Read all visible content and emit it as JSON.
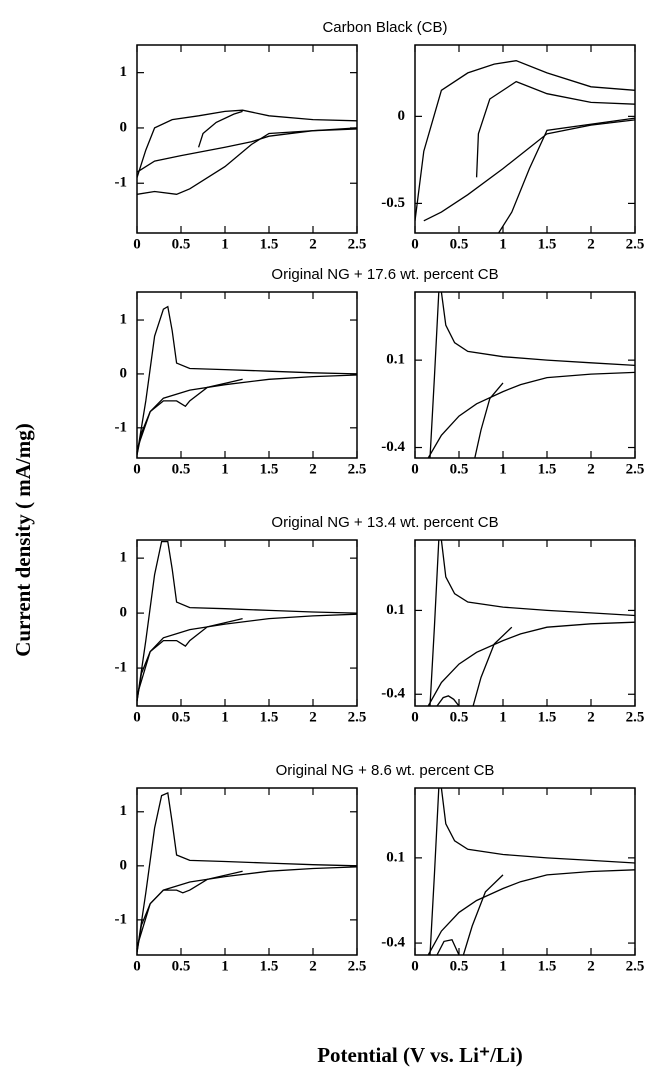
{
  "ylabel": "Current density ( mA/mg)",
  "xlabel": "Potential (V vs. Li⁺/Li)",
  "chart_data": [
    {
      "type": "line",
      "title": "Carbon Black (CB)",
      "xlim": [
        0,
        2.5
      ],
      "ylim": [
        -1.9,
        1.5
      ],
      "xticks": [
        0,
        0.5,
        1,
        1.5,
        2,
        2.5
      ],
      "yticks": [
        1,
        0,
        -1
      ],
      "series": [
        {
          "color": "#000000",
          "x": [
            0,
            0.1,
            0.2,
            0.4,
            0.7,
            1.0,
            1.2,
            1.5,
            2.0,
            2.5
          ],
          "values": [
            -0.9,
            -0.4,
            0.0,
            0.15,
            0.22,
            0.3,
            0.32,
            0.22,
            0.15,
            0.13
          ]
        },
        {
          "color": "#000000",
          "x": [
            2.5,
            2.0,
            1.5,
            1.3,
            1.0,
            0.5,
            0.2,
            0
          ],
          "values": [
            -0.02,
            -0.05,
            -0.15,
            -0.25,
            -0.35,
            -0.5,
            -0.6,
            -0.8
          ]
        },
        {
          "color": "#000000",
          "x": [
            2.5,
            1.5,
            1.3,
            1.0,
            0.6,
            0.45,
            0.2,
            0
          ],
          "values": [
            0,
            -0.1,
            -0.3,
            -0.7,
            -1.1,
            -1.2,
            -1.15,
            -1.2
          ]
        },
        {
          "color": "#000000",
          "x": [
            0.7,
            0.75,
            0.9,
            1.1,
            1.2
          ],
          "values": [
            -0.35,
            -0.1,
            0.1,
            0.25,
            0.3
          ]
        }
      ]
    },
    {
      "type": "line",
      "xlim": [
        0,
        2.5
      ],
      "ylim": [
        -0.67,
        0.41
      ],
      "xticks": [
        0,
        0.5,
        1,
        1.5,
        2,
        2.5
      ],
      "yticks": [
        0,
        -0.5
      ],
      "series": [
        {
          "color": "#000000",
          "x": [
            0,
            0.1,
            0.3,
            0.6,
            0.9,
            1.15,
            1.5,
            2,
            2.5
          ],
          "values": [
            -0.6,
            -0.2,
            0.15,
            0.25,
            0.3,
            0.32,
            0.25,
            0.17,
            0.15
          ]
        },
        {
          "color": "#000000",
          "x": [
            0.7,
            0.72,
            0.85,
            1.15,
            1.5,
            2,
            2.5
          ],
          "values": [
            -0.35,
            -0.1,
            0.1,
            0.2,
            0.13,
            0.08,
            0.07
          ]
        },
        {
          "color": "#000000",
          "x": [
            2.5,
            2,
            1.5,
            1.3,
            1,
            0.6,
            0.3,
            0.1
          ],
          "values": [
            -0.02,
            -0.05,
            -0.1,
            -0.18,
            -0.3,
            -0.45,
            -0.55,
            -0.6
          ]
        },
        {
          "color": "#000000",
          "x": [
            2.5,
            1.5,
            1.3,
            1.1,
            0.95
          ],
          "values": [
            -0.01,
            -0.08,
            -0.3,
            -0.55,
            -0.67
          ]
        }
      ]
    },
    {
      "type": "line",
      "title": "Original NG + 17.6 wt. percent CB",
      "xlim": [
        0,
        2.5
      ],
      "ylim": [
        -1.56,
        1.52
      ],
      "xticks": [
        0,
        0.5,
        1,
        1.5,
        2,
        2.5
      ],
      "yticks": [
        1,
        0,
        -1
      ],
      "series": [
        {
          "color": "#000000",
          "x": [
            0,
            0.1,
            0.2,
            0.3,
            0.35,
            0.4,
            0.45,
            0.6,
            1,
            1.5,
            2,
            2.5
          ],
          "values": [
            -1.5,
            -0.5,
            0.7,
            1.2,
            1.25,
            0.8,
            0.2,
            0.1,
            0.08,
            0.05,
            0.02,
            0.0
          ]
        },
        {
          "color": "#000000",
          "x": [
            2.5,
            2,
            1.5,
            1,
            0.6,
            0.3,
            0.15,
            0.05,
            0
          ],
          "values": [
            -0.02,
            -0.05,
            -0.1,
            -0.2,
            -0.3,
            -0.45,
            -0.7,
            -1.1,
            -1.5
          ]
        },
        {
          "color": "#000000",
          "x": [
            1.2,
            0.8,
            0.6,
            0.55,
            0.45,
            0.3,
            0.15,
            0
          ],
          "values": [
            -0.1,
            -0.25,
            -0.5,
            -0.6,
            -0.5,
            -0.5,
            -0.7,
            -1.4
          ]
        }
      ]
    },
    {
      "type": "line",
      "xlim": [
        0,
        2.5
      ],
      "ylim": [
        -0.46,
        0.49
      ],
      "xticks": [
        0,
        0.5,
        1,
        1.5,
        2,
        2.5
      ],
      "yticks": [
        0.1,
        -0.4
      ],
      "series": [
        {
          "color": "#000000",
          "x": [
            0.17,
            0.22,
            0.27
          ],
          "values": [
            -0.46,
            0,
            0.49
          ]
        },
        {
          "color": "#000000",
          "x": [
            0.3,
            0.35,
            0.45,
            0.6,
            1,
            1.5,
            2,
            2.5
          ],
          "values": [
            0.49,
            0.3,
            0.2,
            0.15,
            0.12,
            0.1,
            0.085,
            0.07
          ]
        },
        {
          "color": "#000000",
          "x": [
            2.5,
            2,
            1.5,
            1.2,
            1,
            0.7,
            0.5,
            0.3,
            0.15
          ],
          "values": [
            0.03,
            0.02,
            0.0,
            -0.04,
            -0.08,
            -0.15,
            -0.22,
            -0.33,
            -0.46
          ]
        },
        {
          "color": "#000000",
          "x": [
            1.0,
            0.85,
            0.75,
            0.68
          ],
          "values": [
            -0.03,
            -0.12,
            -0.3,
            -0.46
          ]
        }
      ]
    },
    {
      "type": "line",
      "title": "Original NG +  13.4 wt. percent CB",
      "xlim": [
        0,
        2.5
      ],
      "ylim": [
        -1.69,
        1.33
      ],
      "xticks": [
        0,
        0.5,
        1,
        1.5,
        2,
        2.5
      ],
      "yticks": [
        1,
        0,
        -1
      ],
      "series": [
        {
          "color": "#000000",
          "x": [
            0,
            0.1,
            0.2,
            0.28,
            0.35,
            0.4,
            0.45,
            0.6,
            1,
            1.5,
            2,
            2.5
          ],
          "values": [
            -1.6,
            -0.5,
            0.7,
            1.3,
            1.3,
            0.8,
            0.2,
            0.1,
            0.08,
            0.05,
            0.02,
            0.0
          ]
        },
        {
          "color": "#000000",
          "x": [
            2.5,
            2,
            1.5,
            1,
            0.6,
            0.3,
            0.15,
            0.05,
            0
          ],
          "values": [
            -0.02,
            -0.05,
            -0.1,
            -0.2,
            -0.3,
            -0.45,
            -0.7,
            -1.1,
            -1.6
          ]
        },
        {
          "color": "#000000",
          "x": [
            1.2,
            0.8,
            0.6,
            0.55,
            0.45,
            0.3,
            0.15,
            0
          ],
          "values": [
            -0.1,
            -0.25,
            -0.5,
            -0.6,
            -0.5,
            -0.5,
            -0.7,
            -1.5
          ]
        }
      ]
    },
    {
      "type": "line",
      "xlim": [
        0,
        2.5
      ],
      "ylim": [
        -0.47,
        0.52
      ],
      "xticks": [
        0,
        0.5,
        1,
        1.5,
        2,
        2.5
      ],
      "yticks": [
        0.1,
        -0.4
      ],
      "series": [
        {
          "color": "#000000",
          "x": [
            0.17,
            0.22,
            0.27
          ],
          "values": [
            -0.47,
            0,
            0.52
          ]
        },
        {
          "color": "#000000",
          "x": [
            0.3,
            0.35,
            0.45,
            0.6,
            1,
            1.5,
            2,
            2.5
          ],
          "values": [
            0.52,
            0.3,
            0.2,
            0.15,
            0.12,
            0.1,
            0.085,
            0.07
          ]
        },
        {
          "color": "#000000",
          "x": [
            2.5,
            2,
            1.5,
            1.2,
            1,
            0.7,
            0.5,
            0.3,
            0.15
          ],
          "values": [
            0.03,
            0.02,
            0.0,
            -0.04,
            -0.08,
            -0.15,
            -0.22,
            -0.33,
            -0.47
          ]
        },
        {
          "color": "#000000",
          "x": [
            1.1,
            0.9,
            0.75,
            0.66
          ],
          "values": [
            0.0,
            -0.1,
            -0.3,
            -0.47
          ]
        },
        {
          "color": "#000000",
          "x": [
            0.25,
            0.32,
            0.38,
            0.44,
            0.5
          ],
          "values": [
            -0.47,
            -0.42,
            -0.41,
            -0.43,
            -0.47
          ]
        }
      ]
    },
    {
      "type": "line",
      "title": "Original NG + 8.6 wt. percent CB",
      "xlim": [
        0,
        2.5
      ],
      "ylim": [
        -1.65,
        1.44
      ],
      "xticks": [
        0,
        0.5,
        1,
        1.5,
        2,
        2.5
      ],
      "yticks": [
        1,
        0,
        -1
      ],
      "series": [
        {
          "color": "#000000",
          "x": [
            0,
            0.1,
            0.2,
            0.28,
            0.35,
            0.4,
            0.45,
            0.6,
            1,
            1.5,
            2,
            2.5
          ],
          "values": [
            -1.6,
            -0.5,
            0.7,
            1.3,
            1.35,
            0.8,
            0.2,
            0.1,
            0.08,
            0.05,
            0.02,
            0.0
          ]
        },
        {
          "color": "#000000",
          "x": [
            2.5,
            2,
            1.5,
            1,
            0.6,
            0.3,
            0.15,
            0.05,
            0
          ],
          "values": [
            -0.02,
            -0.05,
            -0.1,
            -0.2,
            -0.3,
            -0.45,
            -0.7,
            -1.1,
            -1.6
          ]
        },
        {
          "color": "#000000",
          "x": [
            1.2,
            0.8,
            0.6,
            0.52,
            0.45,
            0.3,
            0.15,
            0
          ],
          "values": [
            -0.1,
            -0.25,
            -0.45,
            -0.5,
            -0.45,
            -0.45,
            -0.7,
            -1.5
          ]
        }
      ]
    },
    {
      "type": "line",
      "xlim": [
        0,
        2.5
      ],
      "ylim": [
        -0.47,
        0.51
      ],
      "xticks": [
        0,
        0.5,
        1,
        1.5,
        2,
        2.5
      ],
      "yticks": [
        0.1,
        -0.4
      ],
      "series": [
        {
          "color": "#000000",
          "x": [
            0.17,
            0.22,
            0.27
          ],
          "values": [
            -0.47,
            0,
            0.51
          ]
        },
        {
          "color": "#000000",
          "x": [
            0.3,
            0.35,
            0.45,
            0.6,
            1,
            1.5,
            2,
            2.5
          ],
          "values": [
            0.51,
            0.3,
            0.2,
            0.15,
            0.12,
            0.1,
            0.085,
            0.07
          ]
        },
        {
          "color": "#000000",
          "x": [
            2.5,
            2,
            1.5,
            1.2,
            1,
            0.7,
            0.5,
            0.3,
            0.15
          ],
          "values": [
            0.03,
            0.02,
            0.0,
            -0.04,
            -0.08,
            -0.15,
            -0.22,
            -0.33,
            -0.47
          ]
        },
        {
          "color": "#000000",
          "x": [
            1.0,
            0.8,
            0.65,
            0.55
          ],
          "values": [
            0.0,
            -0.1,
            -0.3,
            -0.47
          ]
        },
        {
          "color": "#000000",
          "x": [
            0.25,
            0.33,
            0.42,
            0.5
          ],
          "values": [
            -0.47,
            -0.39,
            -0.38,
            -0.47
          ]
        }
      ]
    }
  ]
}
